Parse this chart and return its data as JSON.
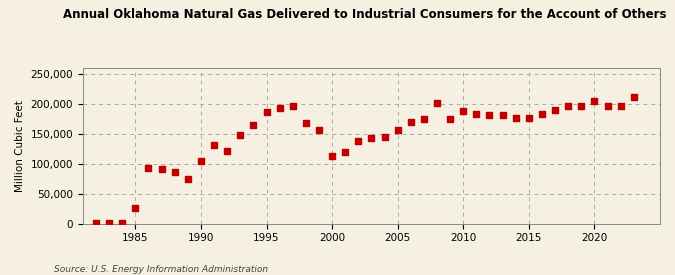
{
  "title": "Annual Oklahoma Natural Gas Delivered to Industrial Consumers for the Account of Others",
  "ylabel": "Million Cubic Feet",
  "source": "Source: U.S. Energy Information Administration",
  "background_color": "#F5F0E1",
  "marker_color": "#C00000",
  "years": [
    1982,
    1983,
    1984,
    1985,
    1986,
    1987,
    1988,
    1989,
    1990,
    1991,
    1992,
    1993,
    1994,
    1995,
    1996,
    1997,
    1998,
    1999,
    2000,
    2001,
    2002,
    2003,
    2004,
    2005,
    2006,
    2007,
    2008,
    2009,
    2010,
    2011,
    2012,
    2013,
    2014,
    2015,
    2016,
    2017,
    2018,
    2019,
    2020,
    2021,
    2022,
    2023
  ],
  "values": [
    500,
    1000,
    1500,
    26000,
    93000,
    91000,
    86000,
    75000,
    105000,
    132000,
    122000,
    148000,
    164000,
    187000,
    193000,
    197000,
    168000,
    156000,
    113000,
    119000,
    138000,
    143000,
    145000,
    157000,
    170000,
    175000,
    201000,
    175000,
    188000,
    183000,
    182000,
    182000,
    176000,
    177000,
    183000,
    190000,
    197000,
    196000,
    205000,
    197000,
    197000,
    212000
  ],
  "ylim": [
    0,
    260000
  ],
  "xlim": [
    1981,
    2025
  ],
  "yticks": [
    0,
    50000,
    100000,
    150000,
    200000,
    250000
  ],
  "xticks": [
    1985,
    1990,
    1995,
    2000,
    2005,
    2010,
    2015,
    2020
  ],
  "grid_color": "#AAAAAA",
  "grid_style": "--"
}
